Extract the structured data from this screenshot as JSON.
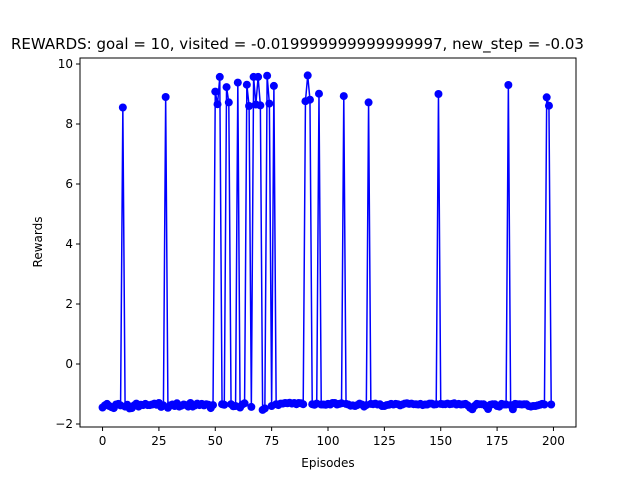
{
  "chart_data": {
    "type": "line",
    "title": "REWARDS: goal = 10, visited = -0.019999999999999997, new_step = -0.03",
    "xlabel": "Episodes",
    "ylabel": "Rewards",
    "xlim": [
      -10,
      210
    ],
    "ylim": [
      -2.1,
      10.2
    ],
    "xticks": [
      0,
      25,
      50,
      75,
      100,
      125,
      150,
      175,
      200
    ],
    "yticks": [
      -2,
      0,
      2,
      4,
      6,
      8,
      10
    ],
    "grid": false,
    "legend": "none",
    "color": "#0000ff",
    "series": [
      {
        "values": [
          -1.45,
          -1.38,
          -1.33,
          -1.4,
          -1.44,
          -1.47,
          -1.35,
          -1.33,
          -1.38,
          8.55,
          -1.42,
          -1.36,
          -1.48,
          -1.47,
          -1.38,
          -1.32,
          -1.42,
          -1.36,
          -1.37,
          -1.33,
          -1.37,
          -1.37,
          -1.35,
          -1.32,
          -1.36,
          -1.3,
          -1.43,
          -1.38,
          8.9,
          -1.46,
          -1.38,
          -1.35,
          -1.4,
          -1.31,
          -1.42,
          -1.39,
          -1.35,
          -1.37,
          -1.42,
          -1.3,
          -1.42,
          -1.38,
          -1.32,
          -1.37,
          -1.33,
          -1.38,
          -1.34,
          -1.36,
          -1.47,
          -1.37,
          9.08,
          8.66,
          9.57,
          -1.34,
          -1.36,
          9.23,
          8.72,
          -1.34,
          -1.41,
          -1.4,
          9.38,
          -1.45,
          -1.35,
          -1.31,
          9.31,
          8.6,
          -1.43,
          9.57,
          8.65,
          9.57,
          8.62,
          -1.53,
          -1.48,
          9.61,
          8.68,
          -1.4,
          9.27,
          -1.34,
          -1.37,
          -1.32,
          -1.32,
          -1.3,
          -1.31,
          -1.29,
          -1.32,
          -1.3,
          -1.34,
          -1.3,
          -1.31,
          -1.34,
          8.76,
          9.62,
          8.81,
          -1.34,
          -1.36,
          -1.32,
          9.01,
          -1.35,
          -1.35,
          -1.36,
          -1.33,
          -1.35,
          -1.3,
          -1.3,
          -1.35,
          -1.33,
          -1.31,
          8.93,
          -1.33,
          -1.35,
          -1.39,
          -1.38,
          -1.4,
          -1.37,
          -1.32,
          -1.35,
          -1.42,
          -1.37,
          8.72,
          -1.33,
          -1.34,
          -1.32,
          -1.35,
          -1.34,
          -1.4,
          -1.4,
          -1.37,
          -1.36,
          -1.33,
          -1.35,
          -1.33,
          -1.34,
          -1.38,
          -1.35,
          -1.32,
          -1.31,
          -1.33,
          -1.32,
          -1.34,
          -1.34,
          -1.35,
          -1.33,
          -1.37,
          -1.35,
          -1.35,
          -1.32,
          -1.32,
          -1.35,
          -1.34,
          9.0,
          -1.33,
          -1.34,
          -1.34,
          -1.32,
          -1.34,
          -1.33,
          -1.31,
          -1.35,
          -1.33,
          -1.35,
          -1.34,
          -1.33,
          -1.38,
          -1.46,
          -1.51,
          -1.4,
          -1.33,
          -1.34,
          -1.34,
          -1.34,
          -1.4,
          -1.5,
          -1.36,
          -1.34,
          -1.34,
          -1.4,
          -1.42,
          -1.33,
          -1.35,
          -1.35,
          9.3,
          -1.37,
          -1.51,
          -1.33,
          -1.34,
          -1.34,
          -1.35,
          -1.34,
          -1.34,
          -1.4,
          -1.42,
          -1.4,
          -1.4,
          -1.38,
          -1.36,
          -1.33,
          -1.35,
          8.89,
          8.61,
          -1.35
        ]
      }
    ]
  }
}
